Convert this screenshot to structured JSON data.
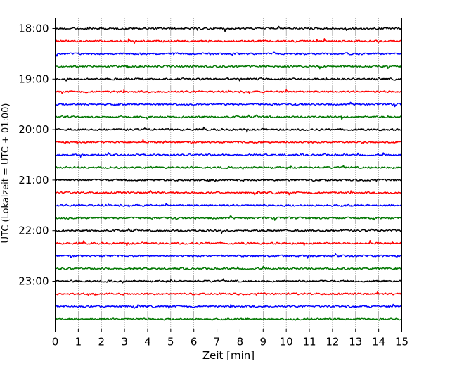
{
  "chart_data": {
    "type": "line",
    "title": "",
    "xlabel": "Zeit  [min]",
    "ylabel": "UTC (Lokalzeit = UTC + 01:00)",
    "xlim": [
      0,
      15
    ],
    "x_ticks": [
      "0",
      "1",
      "2",
      "3",
      "4",
      "5",
      "6",
      "7",
      "8",
      "9",
      "10",
      "11",
      "12",
      "13",
      "14",
      "15"
    ],
    "y_ticks": [
      "18:00",
      "19:00",
      "20:00",
      "21:00",
      "22:00",
      "23:00"
    ],
    "trace_interval_min": 15,
    "trace_start": "18:00",
    "trace_count": 24,
    "trace_colors": [
      "#000000",
      "#ff0000",
      "#0000ff",
      "#007700"
    ],
    "grid": "vertical dotted at each minute"
  }
}
